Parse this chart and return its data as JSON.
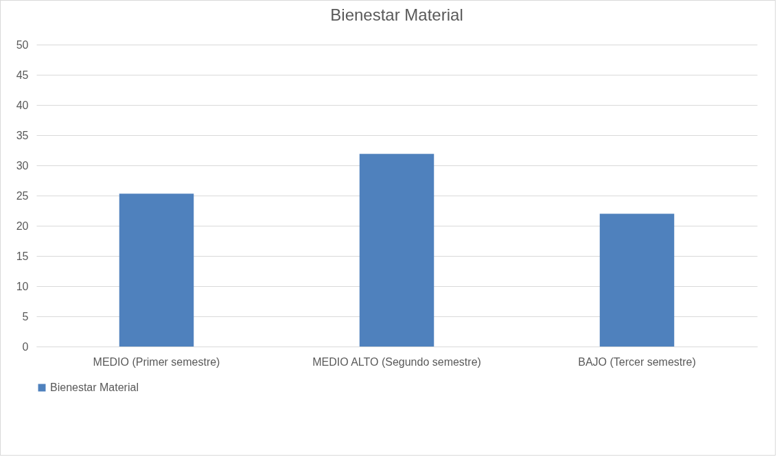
{
  "chart_data": {
    "type": "bar",
    "title": "Bienestar Material",
    "categories": [
      "MEDIO (Primer semestre)",
      "MEDIO ALTO (Segundo semestre)",
      "BAJO (Tercer semestre)"
    ],
    "series": [
      {
        "name": "Bienestar Material",
        "color": "#4f81bd",
        "values": [
          25.3,
          31.9,
          22.0
        ]
      }
    ],
    "ylim": [
      0,
      50
    ],
    "yticks": [
      0,
      5,
      10,
      15,
      20,
      25,
      30,
      35,
      40,
      45,
      50
    ],
    "grid": "y",
    "legend": "bottom"
  }
}
